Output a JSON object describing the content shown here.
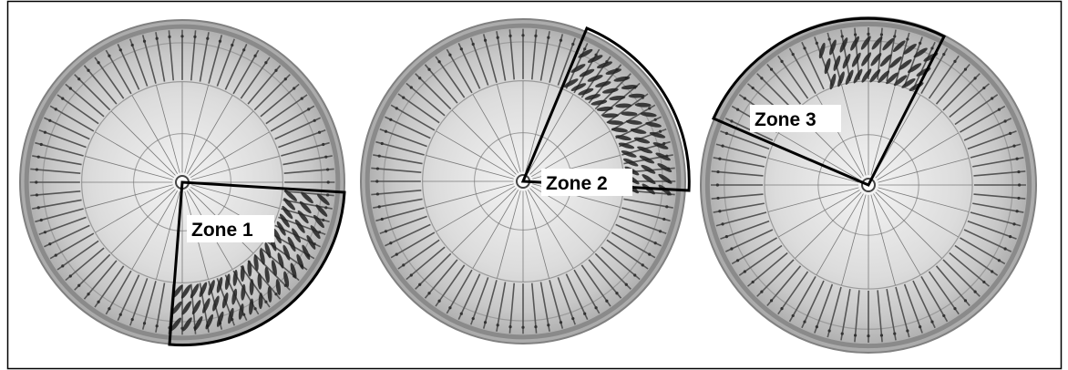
{
  "panels": [
    {
      "id": "zone-1",
      "label": "Zone 1"
    },
    {
      "id": "zone-2",
      "label": "Zone 2"
    },
    {
      "id": "zone-3",
      "label": "Zone 3"
    }
  ],
  "colors": {
    "background": "#ffffff",
    "frame": "#000000",
    "disk_outer": "#a9a9a9",
    "disk_inner": "#dcdcdc",
    "blade": "#555555",
    "deposit": "#222222",
    "zone_outline": "#000000"
  }
}
